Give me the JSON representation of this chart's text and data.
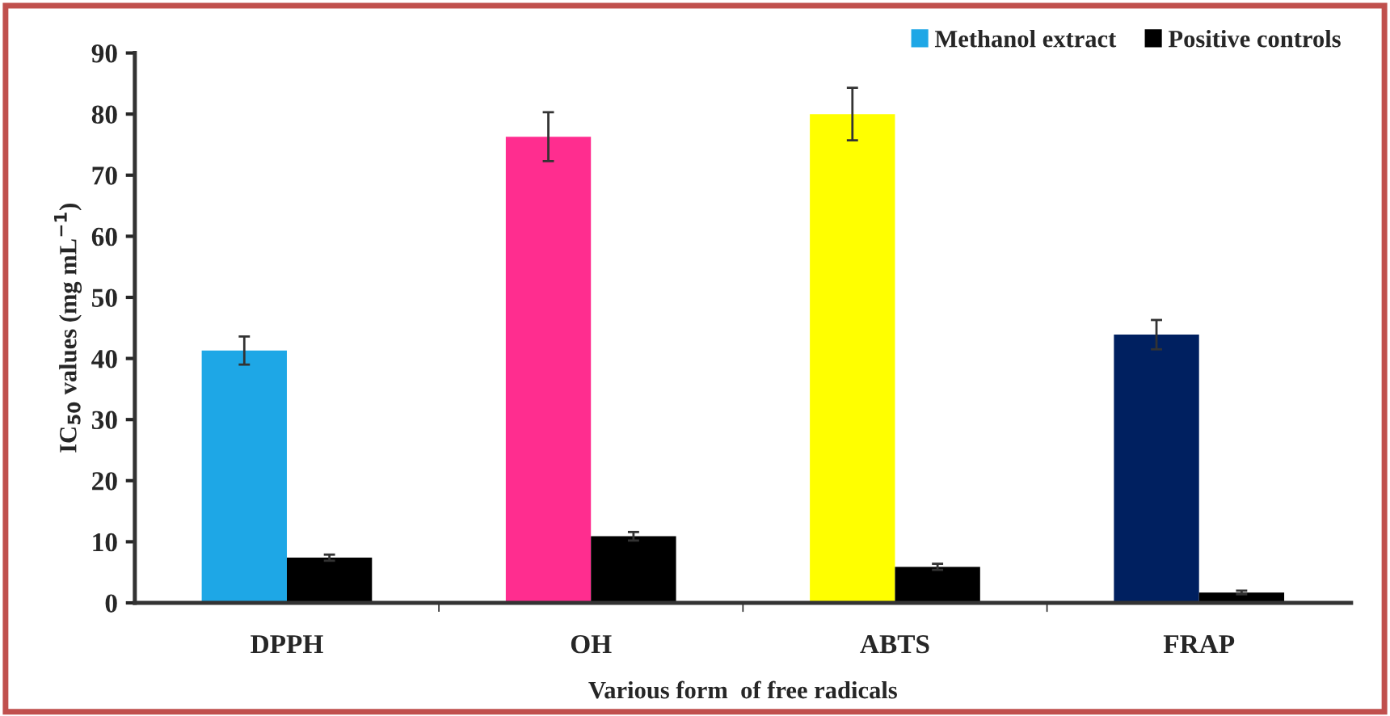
{
  "chart_data": {
    "type": "bar",
    "xlabel": "Various form  of free radicals",
    "ylabel": "IC$_{50}$ values (mg mL$^{−1}$)",
    "categories": [
      "DPPH",
      "OH",
      "ABTS",
      "FRAP"
    ],
    "series": [
      {
        "name": "Methanol extract",
        "color": "#1ea7e6",
        "colors": [
          "#1ea7e6",
          "#ff2d8f",
          "#ffff00",
          "#002060"
        ],
        "values": [
          41.3,
          76.3,
          80.0,
          43.9
        ],
        "errors": [
          2.3,
          4,
          4.3,
          2.4
        ]
      },
      {
        "name": "Positive controls",
        "color": "#000000",
        "values": [
          7.4,
          10.9,
          5.9,
          1.7
        ],
        "errors": [
          0.5,
          0.7,
          0.5,
          0.3
        ]
      }
    ],
    "ylim": [
      0,
      90
    ],
    "yticks": [
      0,
      10,
      20,
      30,
      40,
      50,
      60,
      70,
      80,
      90
    ],
    "grid": false,
    "legend": "top right"
  }
}
